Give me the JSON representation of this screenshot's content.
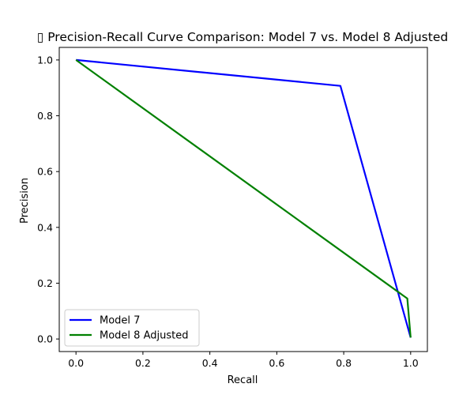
{
  "chart_data": {
    "type": "line",
    "title": "▯ Precision-Recall Curve Comparison: Model 7 vs. Model 8 Adjusted",
    "xlabel": "Recall",
    "ylabel": "Precision",
    "xlim": [
      -0.05,
      1.05
    ],
    "ylim": [
      -0.045,
      1.045
    ],
    "x_ticks": [
      0.0,
      0.2,
      0.4,
      0.6,
      0.8,
      1.0
    ],
    "x_tick_labels": [
      "0.0",
      "0.2",
      "0.4",
      "0.6",
      "0.8",
      "1.0"
    ],
    "y_ticks": [
      0.0,
      0.2,
      0.4,
      0.6,
      0.8,
      1.0
    ],
    "y_tick_labels": [
      "0.0",
      "0.2",
      "0.4",
      "0.6",
      "0.8",
      "1.0"
    ],
    "grid": false,
    "legend_position": "lower-left",
    "series": [
      {
        "name": "Model 7",
        "color": "#0000ff",
        "x": [
          0.0,
          0.79,
          1.0
        ],
        "y": [
          1.0,
          0.907,
          0.005
        ]
      },
      {
        "name": "Model 8 Adjusted",
        "color": "#008000",
        "x": [
          0.0,
          0.99,
          1.0
        ],
        "y": [
          1.0,
          0.145,
          0.005
        ]
      }
    ]
  }
}
